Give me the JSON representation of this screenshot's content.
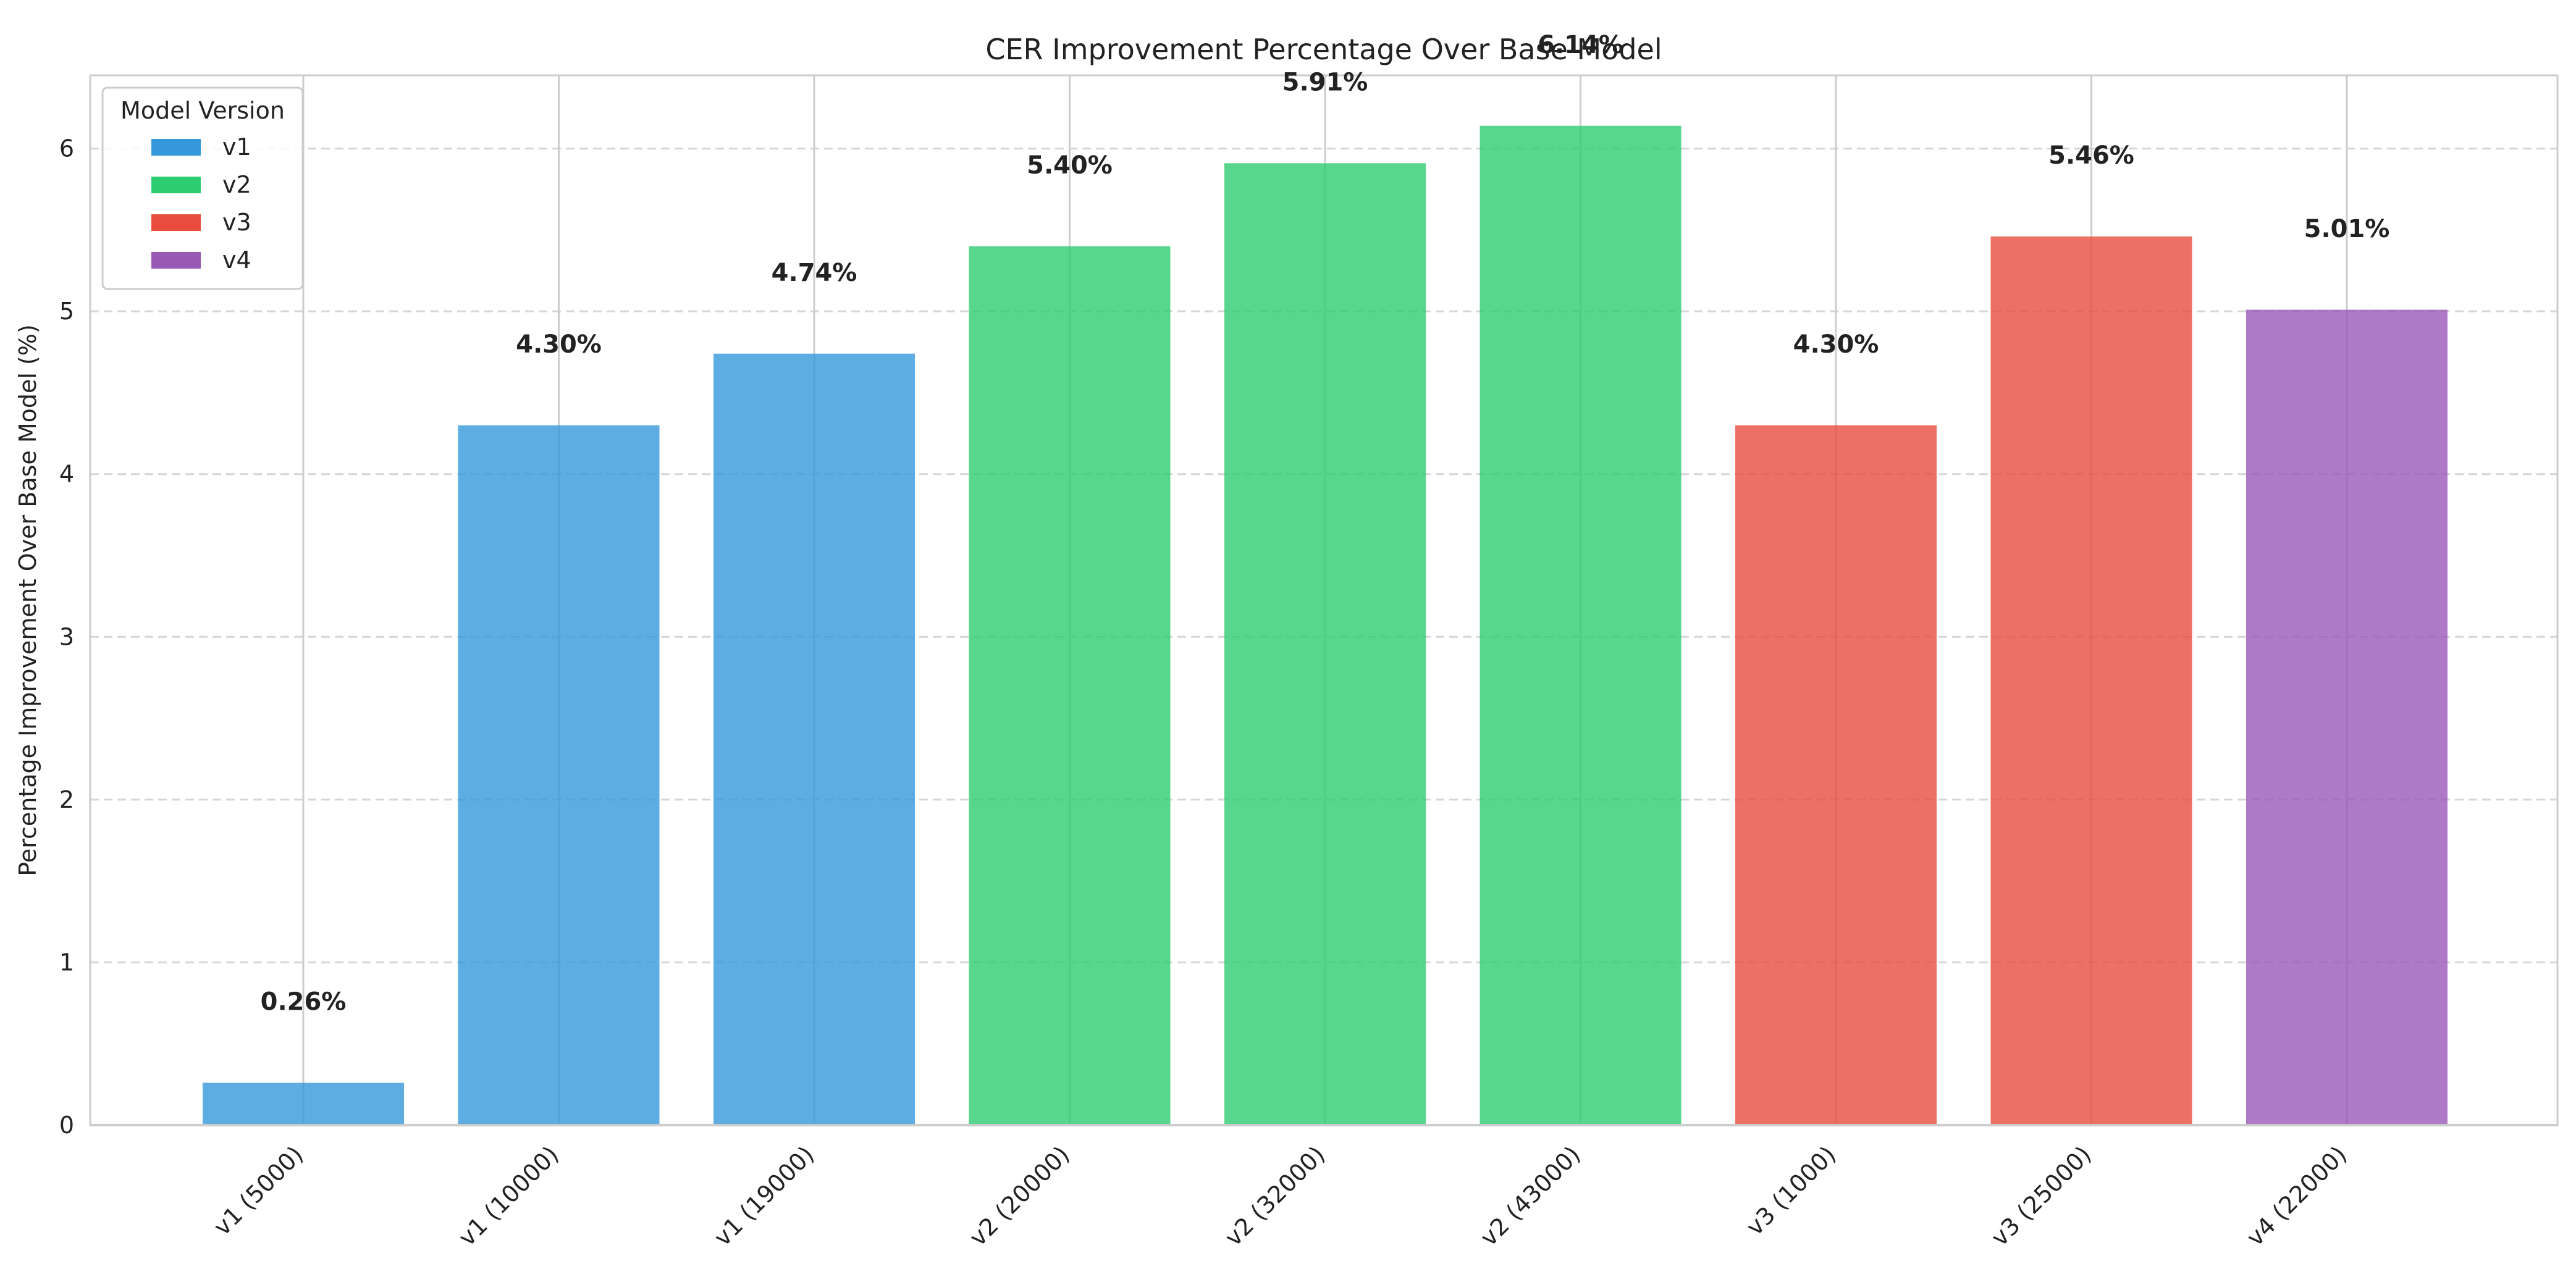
{
  "chart_data": {
    "type": "bar",
    "title": "CER Improvement Percentage Over Base Model",
    "xlabel": "",
    "ylabel": "Percentage Improvement Over Base Model (%)",
    "ylim": [
      0,
      6.45
    ],
    "yticks": [
      0,
      1,
      2,
      3,
      4,
      5,
      6
    ],
    "grid": true,
    "categories": [
      "v1 (5000)",
      "v1 (10000)",
      "v1 (19000)",
      "v2 (20000)",
      "v2 (32000)",
      "v2 (43000)",
      "v3 (1000)",
      "v3 (25000)",
      "v4 (22000)"
    ],
    "values": [
      0.26,
      4.3,
      4.74,
      5.4,
      5.91,
      6.14,
      4.3,
      5.46,
      5.01
    ],
    "data_labels": [
      "0.26%",
      "4.30%",
      "4.74%",
      "5.40%",
      "5.91%",
      "6.14%",
      "4.30%",
      "5.46%",
      "5.01%"
    ],
    "groups": [
      "v1",
      "v1",
      "v1",
      "v2",
      "v2",
      "v2",
      "v3",
      "v3",
      "v4"
    ],
    "legend": {
      "title": "Model Version",
      "placement": "top-left",
      "entries": [
        {
          "name": "v1",
          "color": "#3498db"
        },
        {
          "name": "v2",
          "color": "#2ecc71"
        },
        {
          "name": "v3",
          "color": "#e74c3c"
        },
        {
          "name": "v4",
          "color": "#9b59b6"
        }
      ]
    }
  }
}
